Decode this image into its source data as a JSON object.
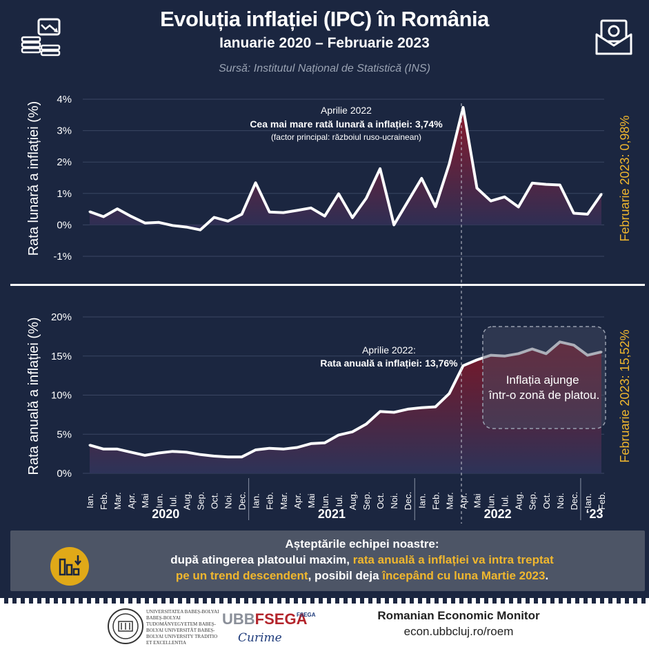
{
  "header": {
    "title": "Evoluția inflației (IPC) în România",
    "subtitle": "Ianuarie 2020 – Februarie 2023",
    "source": "Sursă:  Institutul Național de Statistică (INS)"
  },
  "colors": {
    "background": "#1b2640",
    "line": "#ffffff",
    "fill_top": "#7b1626",
    "accent": "#f0b72e",
    "callout_bg": "#4d5566"
  },
  "icons": [
    "chart-money-icon",
    "envelope-money-icon",
    "bar-chart-down-icon",
    "university-seal-icon",
    "fsega-logo-icon"
  ],
  "chart_data": [
    {
      "type": "area",
      "ylabel": "Rata lunară a inflației (%)",
      "ylim": [
        -1,
        4
      ],
      "yticks": [
        "4%",
        "3%",
        "2%",
        "1%",
        "0%",
        "-1%"
      ],
      "grid": true,
      "side_label": "Februarie 2023: 0,98%",
      "annotation": {
        "line1": "Aprilie 2022",
        "line2": "Cea mai mare rată lunară a inflației: 3,74%",
        "line3": "(factor principal: războiul ruso-ucrainean)"
      },
      "values": [
        0.42,
        0.26,
        0.51,
        0.27,
        0.06,
        0.08,
        -0.02,
        -0.07,
        -0.16,
        0.24,
        0.12,
        0.34,
        1.34,
        0.41,
        0.39,
        0.46,
        0.54,
        0.28,
        0.99,
        0.23,
        0.85,
        1.79,
        0.0,
        0.74,
        1.48,
        0.58,
        1.94,
        3.74,
        1.17,
        0.76,
        0.89,
        0.57,
        1.33,
        1.29,
        1.27,
        0.37,
        0.34,
        0.98
      ]
    },
    {
      "type": "area",
      "ylabel": "Rata anuală a inflației (%)",
      "ylim": [
        0,
        20
      ],
      "yticks": [
        "20%",
        "15%",
        "10%",
        "5%",
        "0%"
      ],
      "grid": true,
      "side_label": "Februarie 2023: 15,52%",
      "annotation": {
        "line1": "Aprilie 2022:",
        "line2": "Rata anuală a inflației: 13,76%"
      },
      "plateau_note": "Inflația ajunge într-o zonă de platou.",
      "values": [
        3.6,
        3.1,
        3.1,
        2.7,
        2.3,
        2.6,
        2.8,
        2.7,
        2.4,
        2.2,
        2.1,
        2.1,
        3.0,
        3.2,
        3.1,
        3.3,
        3.8,
        3.9,
        4.9,
        5.3,
        6.3,
        7.9,
        7.8,
        8.2,
        8.4,
        8.5,
        10.2,
        13.76,
        14.5,
        15.1,
        15.0,
        15.3,
        15.9,
        15.3,
        16.8,
        16.4,
        15.1,
        15.52
      ]
    }
  ],
  "months": [
    "Ian.",
    "Feb.",
    "Mar.",
    "Apr.",
    "Mai",
    "Iun.",
    "Iul.",
    "Aug.",
    "Sep.",
    "Oct.",
    "Noi.",
    "Dec.",
    "Ian.",
    "Feb.",
    "Mar.",
    "Apr.",
    "Mai",
    "Iun.",
    "Iul.",
    "Aug.",
    "Sep.",
    "Oct.",
    "Noi.",
    "Dec.",
    "Ian.",
    "Feb.",
    "Mar.",
    "Apr.",
    "Mai",
    "Iun.",
    "Iul.",
    "Aug.",
    "Sep.",
    "Oct.",
    "Noi.",
    "Dec.",
    "Ian.",
    "Feb."
  ],
  "years": [
    "2020",
    "2021",
    "2022",
    "‘23"
  ],
  "callout": {
    "line1": "Așteptările echipei noastre:",
    "line2a": "după atingerea platoului maxim, ",
    "line2b": "rata anuală a inflației va intra treptat",
    "line3a": "pe un trend descendent",
    "line3b": ", posibil deja ",
    "line3c": "începând cu luna Martie 2023",
    "line3d": "."
  },
  "footer": {
    "ubb_lines": "UNIVERSITATEA BABEȘ-BOLYAI BABEȘ-BOLYAI TUDOMÁNYEGYETEM BABEȘ-BOLYAI UNIVERSITÄT BABEȘ-BOLYAI UNIVERSITY TRADITIO ET EXCELLENTIA",
    "fsega_prefix": "UBB",
    "fsega_name": "FSEGA",
    "fsega_sig": "Curime",
    "fsega_mini": "FSEGA",
    "roem_title": "Romanian Economic Monitor",
    "roem_url": "econ.ubbcluj.ro/roem"
  }
}
